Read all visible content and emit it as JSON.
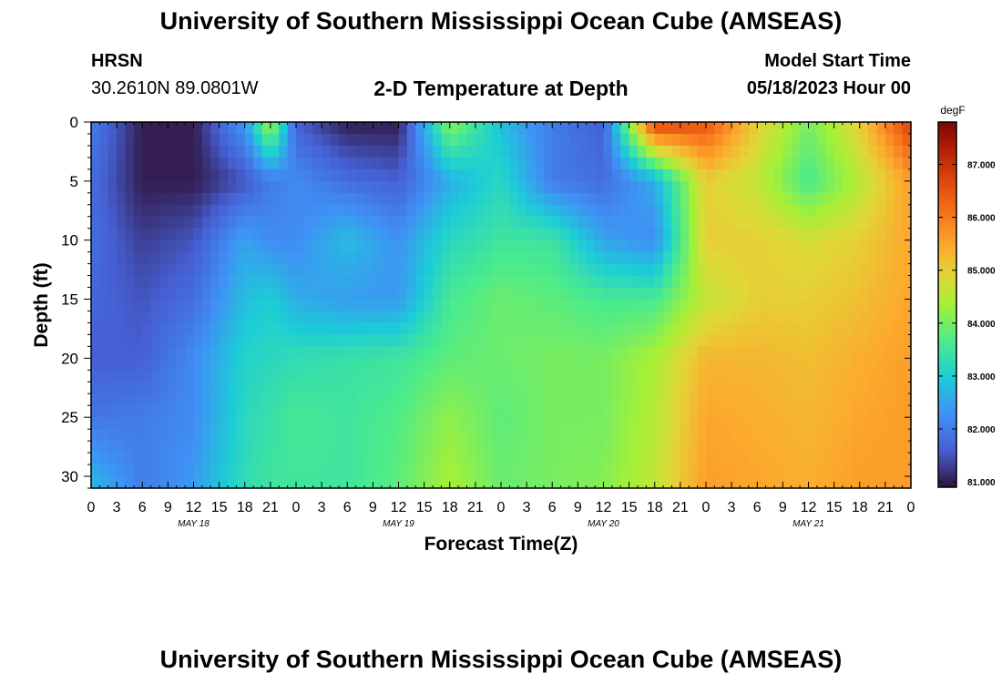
{
  "header": {
    "title": "University of Southern Mississippi Ocean Cube (AMSEAS)",
    "station": "HRSN",
    "coords": "30.2610N  89.0801W",
    "plot_title": "2-D Temperature at Depth",
    "model_start_label": "Model Start Time",
    "model_start_value": "05/18/2023 Hour 00"
  },
  "footer": {
    "title": "University of Southern Mississippi Ocean Cube (AMSEAS)"
  },
  "chart_data": {
    "type": "heatmap",
    "title": "2-D Temperature at Depth",
    "xlabel": "Forecast Time(Z)",
    "ylabel": "Depth (ft)",
    "x_tick_labels": [
      "0",
      "3",
      "6",
      "9",
      "12",
      "15",
      "18",
      "21",
      "0",
      "3",
      "6",
      "9",
      "12",
      "15",
      "18",
      "21",
      "0",
      "3",
      "6",
      "9",
      "12",
      "15",
      "18",
      "21",
      "0",
      "3",
      "6",
      "9",
      "12",
      "15",
      "18",
      "21",
      "0"
    ],
    "day_labels": [
      {
        "label": "MAY 18",
        "hour": 12
      },
      {
        "label": "MAY 19",
        "hour": 36
      },
      {
        "label": "MAY 20",
        "hour": 60
      },
      {
        "label": "MAY 21",
        "hour": 84
      }
    ],
    "xlim": [
      0,
      96
    ],
    "ylim": [
      0,
      31
    ],
    "y_inverted": true,
    "y_ticks": [
      0,
      5,
      10,
      15,
      20,
      25,
      30
    ],
    "colorbar": {
      "unit": "degF",
      "min": 80.9,
      "max": 87.8,
      "ticks": [
        "81.000",
        "82.000",
        "83.000",
        "84.000",
        "85.000",
        "86.000",
        "87.000"
      ]
    },
    "hours": [
      0,
      6,
      12,
      18,
      21,
      24,
      30,
      36,
      42,
      48,
      54,
      60,
      66,
      72,
      78,
      84,
      90,
      96
    ],
    "depths": [
      0,
      5,
      10,
      15,
      20,
      25,
      31
    ],
    "values": [
      [
        82.0,
        81.0,
        81.0,
        82.4,
        84.5,
        81.6,
        81.0,
        81.0,
        84.2,
        82.8,
        82.0,
        81.6,
        86.8,
        86.5,
        85.0,
        84.0,
        85.0,
        86.8
      ],
      [
        81.8,
        81.0,
        81.0,
        81.5,
        82.0,
        82.2,
        81.8,
        81.6,
        82.6,
        83.2,
        82.0,
        81.8,
        82.6,
        85.0,
        84.6,
        83.6,
        84.5,
        85.6
      ],
      [
        81.8,
        81.3,
        81.5,
        82.5,
        82.2,
        82.2,
        82.8,
        82.3,
        83.2,
        83.5,
        83.5,
        82.5,
        82.2,
        85.0,
        85.0,
        84.8,
        85.0,
        85.5
      ],
      [
        81.7,
        81.5,
        81.8,
        82.8,
        83.0,
        82.6,
        82.4,
        82.4,
        83.6,
        83.9,
        83.8,
        83.6,
        83.6,
        84.6,
        85.0,
        85.0,
        85.2,
        85.5
      ],
      [
        81.6,
        81.6,
        82.2,
        83.1,
        83.2,
        83.3,
        83.4,
        83.5,
        83.8,
        83.9,
        84.0,
        84.0,
        84.4,
        85.3,
        85.3,
        85.2,
        85.4,
        85.6
      ],
      [
        81.9,
        82.0,
        82.2,
        83.2,
        83.4,
        83.6,
        83.5,
        83.7,
        84.2,
        83.8,
        84.0,
        84.0,
        84.5,
        85.5,
        85.4,
        85.3,
        85.5,
        85.6
      ],
      [
        82.8,
        82.0,
        82.4,
        83.3,
        83.5,
        83.5,
        83.5,
        83.8,
        84.4,
        83.9,
        84.0,
        84.1,
        84.6,
        85.6,
        85.5,
        85.4,
        85.6,
        85.6
      ]
    ],
    "grid": false,
    "legend": "colorbar-right"
  }
}
